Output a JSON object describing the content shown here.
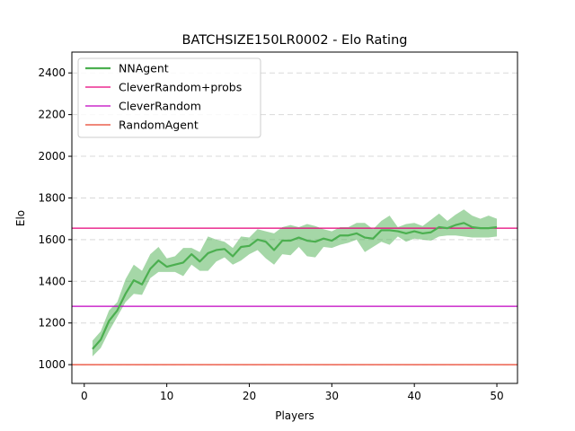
{
  "chart_data": {
    "type": "line",
    "title": "BATCHSIZE150LR0002 - Elo Rating",
    "xlabel": "Players",
    "ylabel": "Elo",
    "xlim": [
      -1.5,
      52.5
    ],
    "ylim": [
      910,
      2500
    ],
    "xticks": [
      0,
      10,
      20,
      30,
      40,
      50
    ],
    "yticks": [
      1000,
      1200,
      1400,
      1600,
      1800,
      2000,
      2200,
      2400
    ],
    "grid": "horizontal dashed",
    "legend_position": "top-left",
    "series": [
      {
        "name": "NNAgent",
        "color": "#4caf50",
        "x": [
          1,
          2,
          3,
          4,
          5,
          6,
          7,
          8,
          9,
          10,
          11,
          12,
          13,
          14,
          15,
          16,
          17,
          18,
          19,
          20,
          21,
          22,
          23,
          24,
          25,
          26,
          27,
          28,
          29,
          30,
          31,
          32,
          33,
          34,
          35,
          36,
          37,
          38,
          39,
          40,
          41,
          42,
          43,
          44,
          45,
          46,
          47,
          48,
          49,
          50
        ],
        "y": [
          1075,
          1120,
          1210,
          1260,
          1340,
          1405,
          1385,
          1460,
          1500,
          1470,
          1480,
          1490,
          1530,
          1495,
          1535,
          1550,
          1555,
          1520,
          1565,
          1570,
          1600,
          1590,
          1550,
          1595,
          1595,
          1610,
          1595,
          1590,
          1605,
          1595,
          1620,
          1620,
          1630,
          1610,
          1605,
          1645,
          1645,
          1640,
          1630,
          1640,
          1630,
          1635,
          1660,
          1655,
          1670,
          1680,
          1660,
          1655,
          1655,
          1660
        ],
        "lower": [
          1040,
          1080,
          1160,
          1230,
          1300,
          1340,
          1335,
          1415,
          1445,
          1445,
          1445,
          1425,
          1480,
          1450,
          1450,
          1495,
          1515,
          1480,
          1500,
          1530,
          1550,
          1510,
          1480,
          1530,
          1525,
          1565,
          1520,
          1515,
          1565,
          1560,
          1575,
          1585,
          1600,
          1540,
          1565,
          1590,
          1575,
          1615,
          1590,
          1605,
          1600,
          1595,
          1615,
          1620,
          1620,
          1615,
          1610,
          1610,
          1610,
          1615
        ],
        "upper": [
          1115,
          1160,
          1260,
          1300,
          1410,
          1480,
          1450,
          1530,
          1565,
          1510,
          1520,
          1560,
          1560,
          1540,
          1615,
          1600,
          1590,
          1560,
          1615,
          1610,
          1650,
          1640,
          1630,
          1660,
          1670,
          1660,
          1675,
          1665,
          1650,
          1640,
          1660,
          1660,
          1680,
          1680,
          1650,
          1690,
          1715,
          1660,
          1675,
          1680,
          1665,
          1695,
          1725,
          1690,
          1720,
          1745,
          1715,
          1700,
          1715,
          1700
        ]
      }
    ],
    "reference_lines": [
      {
        "name": "CleverRandom+probs",
        "y": 1655,
        "color": "#e6007a"
      },
      {
        "name": "CleverRandom",
        "y": 1280,
        "color": "#c000c0"
      },
      {
        "name": "RandomAgent",
        "y": 1000,
        "color": "#e8412a"
      }
    ]
  }
}
